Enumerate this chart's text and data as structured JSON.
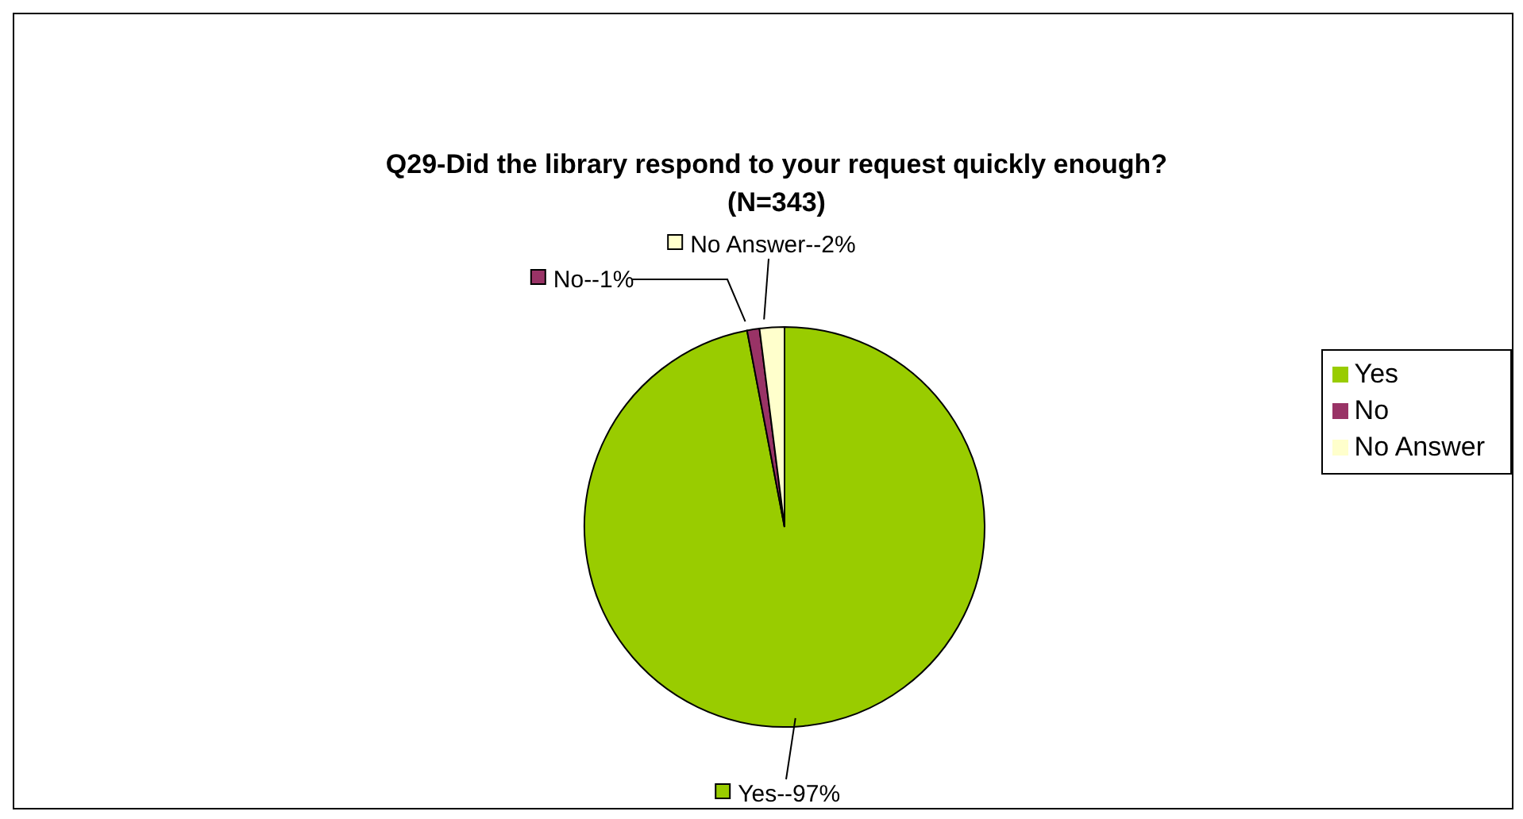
{
  "chart_data": {
    "type": "pie",
    "title": "Q29-Did the library respond to your request quickly enough?\n(N=343)",
    "categories": [
      "Yes",
      "No",
      "No Answer"
    ],
    "values": [
      97,
      1,
      2
    ],
    "colors": [
      "#99cc00",
      "#993366",
      "#ffffcc"
    ],
    "value_labels": [
      "Yes--97%",
      "No--1%",
      "No Answer--2%"
    ],
    "legend": "right"
  }
}
